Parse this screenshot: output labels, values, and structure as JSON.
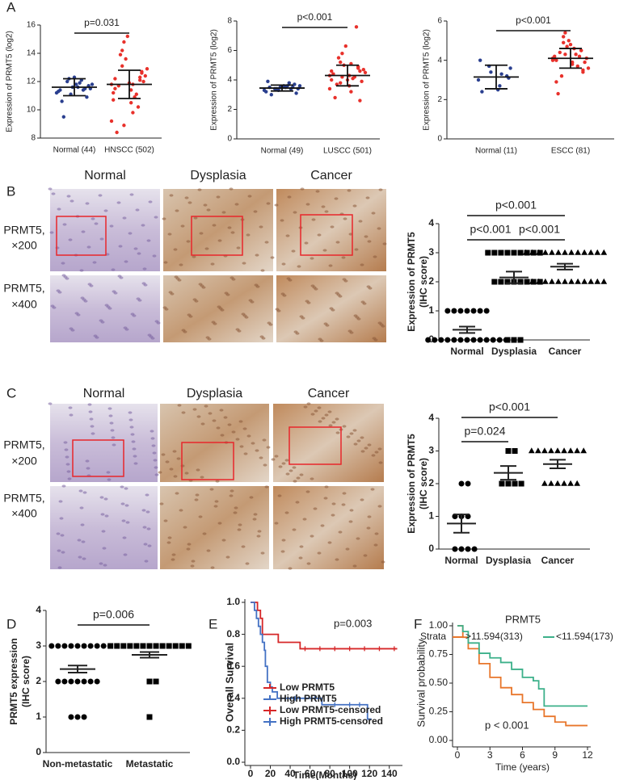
{
  "panel_labels": [
    "A",
    "B",
    "C",
    "D",
    "E",
    "F"
  ],
  "image_panels": [
    {
      "columns": [
        "Normal",
        "Dysplasia",
        "Cancer"
      ],
      "rows": [
        [
          "PRMT5,",
          "×200"
        ],
        [
          "PRMT5,",
          "×400"
        ]
      ]
    },
    {
      "columns": [
        "Normal",
        "Dysplasia",
        "Cancer"
      ],
      "rows": [
        [
          "PRMT5,",
          "×200"
        ],
        [
          "PRMT5,",
          "×400"
        ]
      ]
    }
  ],
  "chart_data": [
    {
      "type": "dot",
      "ylabel": "Expression of PRMT5 (log2)",
      "categories": [
        "Normal (44)",
        "HNSCC (502)"
      ],
      "ylim": [
        8,
        16
      ],
      "yticks": [
        8,
        10,
        12,
        14,
        16
      ],
      "groups": [
        {
          "color": "#2a3f8f",
          "marker": "circle",
          "points": [
            11.2,
            11.5,
            11.8,
            12.0,
            11.3,
            10.9,
            11.6,
            12.2,
            11.4,
            11.7,
            11.9,
            11.1,
            10.6,
            11.5,
            12.1,
            11.6,
            9.5,
            11.8,
            11.4,
            12.3
          ],
          "mean": 11.6,
          "error": 0.6
        },
        {
          "color": "#e8312b",
          "marker": "circle",
          "points": [
            11.8,
            12.3,
            10.5,
            13.1,
            11.2,
            12.7,
            9.8,
            14.8,
            11.5,
            12.0,
            10.9,
            13.6,
            8.4,
            12.4,
            11.1,
            15.2,
            11.7,
            12.9,
            10.2,
            11.9,
            13.9,
            9.2,
            12.1,
            11.4,
            14.2,
            10.7,
            12.6,
            11.8,
            8.9,
            12.2
          ],
          "mean": 11.8,
          "error": 1.0
        }
      ],
      "comparisons": [
        {
          "label": "p=0.031",
          "between": [
            0,
            1
          ]
        }
      ]
    },
    {
      "type": "dot",
      "ylabel": "Expression of PRMT5 (log2)",
      "categories": [
        "Normal (49)",
        "LUSCC (501)"
      ],
      "ylim": [
        0,
        8
      ],
      "yticks": [
        0,
        2,
        4,
        6,
        8
      ],
      "groups": [
        {
          "color": "#2a3f8f",
          "marker": "circle",
          "points": [
            3.3,
            3.5,
            3.6,
            3.4,
            3.2,
            3.7,
            3.5,
            3.4,
            3.9,
            3.1,
            3.6,
            3.3,
            3.5,
            3.4,
            3.8,
            3.5,
            3.0,
            3.6,
            3.4,
            3.5
          ],
          "mean": 3.45,
          "error": 0.2
        },
        {
          "color": "#e8312b",
          "marker": "circle",
          "points": [
            4.3,
            4.8,
            3.6,
            5.2,
            4.0,
            4.6,
            3.2,
            5.8,
            4.4,
            3.9,
            4.1,
            5.0,
            2.8,
            4.7,
            4.2,
            6.3,
            3.7,
            4.5,
            7.6,
            4.0,
            5.5,
            3.4,
            4.9,
            4.3,
            3.8,
            4.6,
            2.6,
            5.1,
            4.2,
            4.4
          ],
          "mean": 4.3,
          "error": 0.7
        }
      ],
      "comparisons": [
        {
          "label": "p<0.001",
          "between": [
            0,
            1
          ]
        }
      ]
    },
    {
      "type": "dot",
      "ylabel": "Expression of PRMT5 (log2)",
      "categories": [
        "Normal (11)",
        "ESCC (81)"
      ],
      "ylim": [
        0,
        6
      ],
      "yticks": [
        0,
        2,
        4,
        6
      ],
      "groups": [
        {
          "color": "#2a3f8f",
          "marker": "circle",
          "points": [
            3.0,
            3.2,
            2.5,
            3.7,
            4.0,
            3.1,
            2.7,
            3.4,
            2.4,
            3.6,
            3.3
          ],
          "mean": 3.15,
          "error": 0.6
        },
        {
          "color": "#e8312b",
          "marker": "circle",
          "points": [
            4.1,
            4.5,
            3.8,
            4.9,
            4.2,
            3.5,
            4.6,
            5.4,
            4.0,
            3.9,
            4.3,
            4.7,
            2.3,
            4.1,
            3.7,
            5.0,
            4.4,
            3.6,
            4.2,
            4.8,
            3.2,
            4.0,
            4.5,
            3.9,
            5.2,
            4.1,
            3.4,
            4.6,
            4.3,
            2.9
          ],
          "mean": 4.1,
          "error": 0.5
        }
      ],
      "comparisons": [
        {
          "label": "p<0.001",
          "between": [
            0,
            1
          ]
        }
      ]
    },
    {
      "type": "dot",
      "ylabel": [
        "Expression of PRMT5",
        "(IHC score)"
      ],
      "categories": [
        "Normal",
        "Dysplasia",
        "Cancer"
      ],
      "ylim": [
        0,
        4
      ],
      "yticks": [
        0,
        1,
        2,
        3,
        4
      ],
      "groups": [
        {
          "color": "#000000",
          "marker": "circle",
          "points": [
            1,
            1,
            1,
            1,
            1,
            1,
            1,
            0,
            0,
            0,
            0,
            0,
            0,
            0,
            0,
            0,
            0,
            0,
            0,
            0
          ],
          "mean": 0.35,
          "error": 0.11
        },
        {
          "color": "#000000",
          "marker": "square",
          "points": [
            0,
            0,
            0,
            2,
            2,
            2,
            2,
            2,
            2,
            2,
            2,
            3,
            3,
            3,
            3,
            3,
            3,
            3,
            3,
            3
          ],
          "mean": 2.15,
          "error": 0.2
        },
        {
          "color": "#000000",
          "marker": "triangle",
          "points": [
            2,
            2,
            2,
            2,
            2,
            2,
            2,
            2,
            2,
            2,
            2,
            2,
            3,
            3,
            3,
            3,
            3,
            3,
            3,
            3,
            3,
            3,
            3,
            3,
            3
          ],
          "mean": 2.52,
          "error": 0.1
        }
      ],
      "comparisons": [
        {
          "label": "p<0.001",
          "between": [
            0,
            2
          ]
        },
        {
          "label": "p<0.001",
          "between": [
            0,
            1
          ]
        },
        {
          "label": "p<0.001",
          "between": [
            1,
            2
          ]
        }
      ]
    },
    {
      "type": "dot",
      "ylabel": [
        "Expression of PRMT5",
        "(IHC score)"
      ],
      "categories": [
        "Normal",
        "Dysplasia",
        "Cancer"
      ],
      "ylim": [
        0,
        4
      ],
      "yticks": [
        0,
        1,
        2,
        3,
        4
      ],
      "groups": [
        {
          "color": "#000000",
          "marker": "circle",
          "points": [
            2,
            2,
            1,
            1,
            1,
            0,
            0,
            0,
            0
          ],
          "mean": 0.78,
          "error": 0.28
        },
        {
          "color": "#000000",
          "marker": "square",
          "points": [
            2,
            2,
            2,
            2,
            3,
            3
          ],
          "mean": 2.33,
          "error": 0.21
        },
        {
          "color": "#000000",
          "marker": "triangle",
          "points": [
            2,
            2,
            2,
            2,
            2,
            2,
            3,
            3,
            3,
            3,
            3,
            3,
            3,
            3,
            3
          ],
          "mean": 2.6,
          "error": 0.13
        }
      ],
      "comparisons": [
        {
          "label": "p=0.024",
          "between": [
            0,
            1
          ]
        },
        {
          "label": "p<0.001",
          "between": [
            0,
            2
          ]
        }
      ]
    },
    {
      "type": "dot",
      "ylabel": [
        "PRMT5 expression",
        "(IHC score)"
      ],
      "categories": [
        "Non-metastatic",
        "Metastatic"
      ],
      "ylim": [
        0,
        4
      ],
      "yticks": [
        0,
        1,
        2,
        3,
        4
      ],
      "groups": [
        {
          "color": "#000000",
          "marker": "circle",
          "points": [
            1,
            1,
            1,
            2,
            2,
            2,
            2,
            2,
            2,
            2,
            3,
            3,
            3,
            3,
            3,
            3,
            3,
            3,
            3,
            3
          ],
          "mean": 2.35,
          "error": 0.1
        },
        {
          "color": "#000000",
          "marker": "square",
          "points": [
            1,
            2,
            2,
            3,
            3,
            3,
            3,
            3,
            3,
            3,
            3,
            3,
            3,
            3,
            3,
            3
          ],
          "mean": 2.75,
          "error": 0.08
        }
      ],
      "comparisons": [
        {
          "label": "p=0.006",
          "between": [
            0,
            1
          ]
        }
      ]
    },
    {
      "type": "survival",
      "xlabel": "Time(Months)",
      "ylabel": "Overall Survival",
      "annotation": "p=0.003",
      "xlim": [
        0,
        150
      ],
      "xticks": [
        0,
        20,
        40,
        60,
        80,
        100,
        120,
        140
      ],
      "ylim": [
        0,
        1
      ],
      "yticks": [
        {
          "value": 0,
          "label": "0.0"
        },
        0.2,
        0.4,
        0.6,
        0.8,
        {
          "value": 1,
          "label": "1.0"
        }
      ],
      "legend": "bottom-left",
      "series": [
        {
          "name": "Low PRMT5",
          "color": "#d62728",
          "x": [
            0,
            7,
            10,
            12,
            28,
            50,
            148
          ],
          "values": [
            1,
            0.95,
            0.9,
            0.8,
            0.75,
            0.71,
            0.71
          ]
        },
        {
          "name": "High PRMT5",
          "color": "#4472c4",
          "x": [
            0,
            4,
            6,
            8,
            10,
            12,
            14,
            15,
            17,
            20,
            22,
            27,
            72,
            118,
            122
          ],
          "values": [
            1,
            0.95,
            0.9,
            0.85,
            0.8,
            0.75,
            0.7,
            0.6,
            0.5,
            0.47,
            0.44,
            0.4,
            0.36,
            0.27,
            0.27
          ]
        },
        {
          "name": "Low PRMT5-censored",
          "color": "#d62728",
          "marker": "+",
          "x": [
            55,
            70,
            85,
            100,
            115,
            130,
            145
          ],
          "values": [
            0.71,
            0.71,
            0.71,
            0.71,
            0.71,
            0.71,
            0.71
          ]
        },
        {
          "name": "High PRMT5-censored",
          "color": "#4472c4",
          "marker": "+",
          "x": [
            35,
            45,
            55,
            65,
            85,
            100,
            110
          ],
          "values": [
            0.4,
            0.4,
            0.4,
            0.4,
            0.36,
            0.36,
            0.36
          ]
        }
      ]
    },
    {
      "type": "survival",
      "title": "PRMT5",
      "xlabel": "Time (years)",
      "ylabel": "Survival probability",
      "annotation": "p < 0.001",
      "legend": "top",
      "legend_title": "Strata",
      "xlim": [
        0,
        12
      ],
      "xticks": [
        0,
        3,
        6,
        9,
        12
      ],
      "ylim": [
        0,
        1
      ],
      "yticks": [
        {
          "value": 0,
          "label": "0.00"
        },
        {
          "value": 0.25,
          "label": "0.25"
        },
        {
          "value": 0.5,
          "label": "0.50"
        },
        {
          "value": 0.75,
          "label": "0.75"
        },
        {
          "value": 1,
          "label": "1.00"
        }
      ],
      "series": [
        {
          "name": ">11.594(313)",
          "color": "#e8762b",
          "x": [
            0,
            0.5,
            1,
            2,
            3,
            4,
            5,
            6,
            7,
            8,
            9,
            10,
            12
          ],
          "values": [
            1,
            0.9,
            0.8,
            0.67,
            0.55,
            0.46,
            0.4,
            0.33,
            0.27,
            0.21,
            0.16,
            0.13,
            0.13
          ]
        },
        {
          "name": "<11.594(173)",
          "color": "#3cb08a",
          "x": [
            0,
            0.5,
            1,
            2,
            3,
            4,
            5,
            6,
            7,
            7.5,
            8,
            12
          ],
          "values": [
            1,
            0.95,
            0.85,
            0.76,
            0.72,
            0.68,
            0.62,
            0.55,
            0.52,
            0.45,
            0.3,
            0.3
          ]
        }
      ]
    }
  ]
}
